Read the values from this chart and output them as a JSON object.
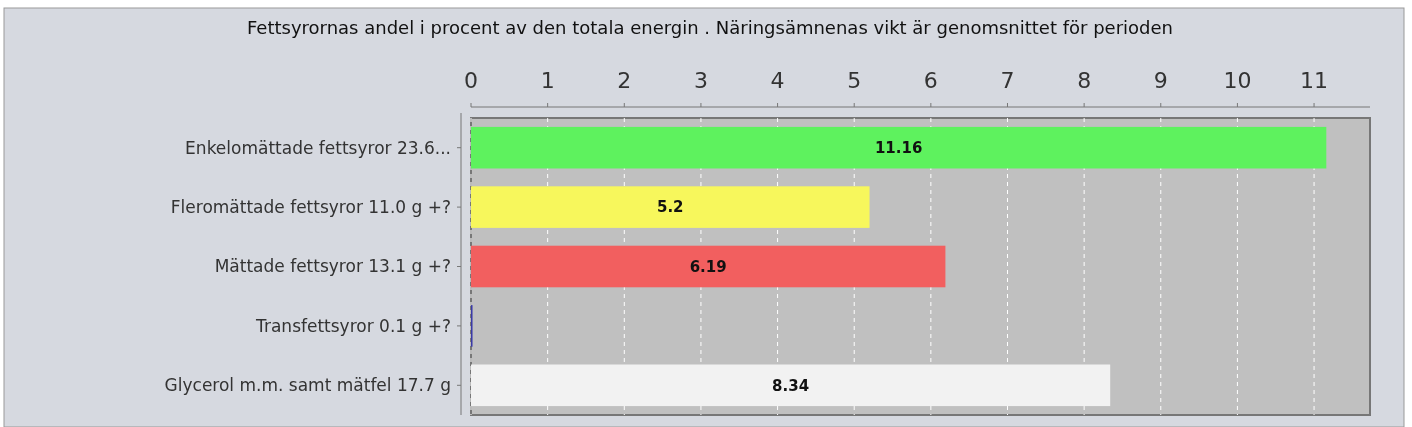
{
  "chart_data": {
    "type": "bar",
    "orientation": "horizontal",
    "title": "Fettsyrornas andel i procent av den totala energin . Näringsämnenas vikt är genomsnittet för perioden",
    "categories": [
      "Enkelomättade fettsyror 23.6...",
      "Fleromättade fettsyror 11.0 g +?",
      "Mättade fettsyror 13.1 g +?",
      "Transfettsyror 0.1 g +?",
      "Glycerol m.m. samt mätfel 17.7 g"
    ],
    "values": [
      11.16,
      5.2,
      6.19,
      0.02,
      8.34
    ],
    "value_labels": [
      "11.16",
      "5.2",
      "6.19",
      null,
      "8.34"
    ],
    "colors": [
      "#5ef25e",
      "#f7f75c",
      "#f25f5f",
      "#3a3aa8",
      "#f2f2f2"
    ],
    "xlim": [
      0,
      11.73
    ],
    "xticks": [
      0,
      1,
      2,
      3,
      4,
      5,
      6,
      7,
      8,
      9,
      10,
      11
    ],
    "grid": "x"
  }
}
